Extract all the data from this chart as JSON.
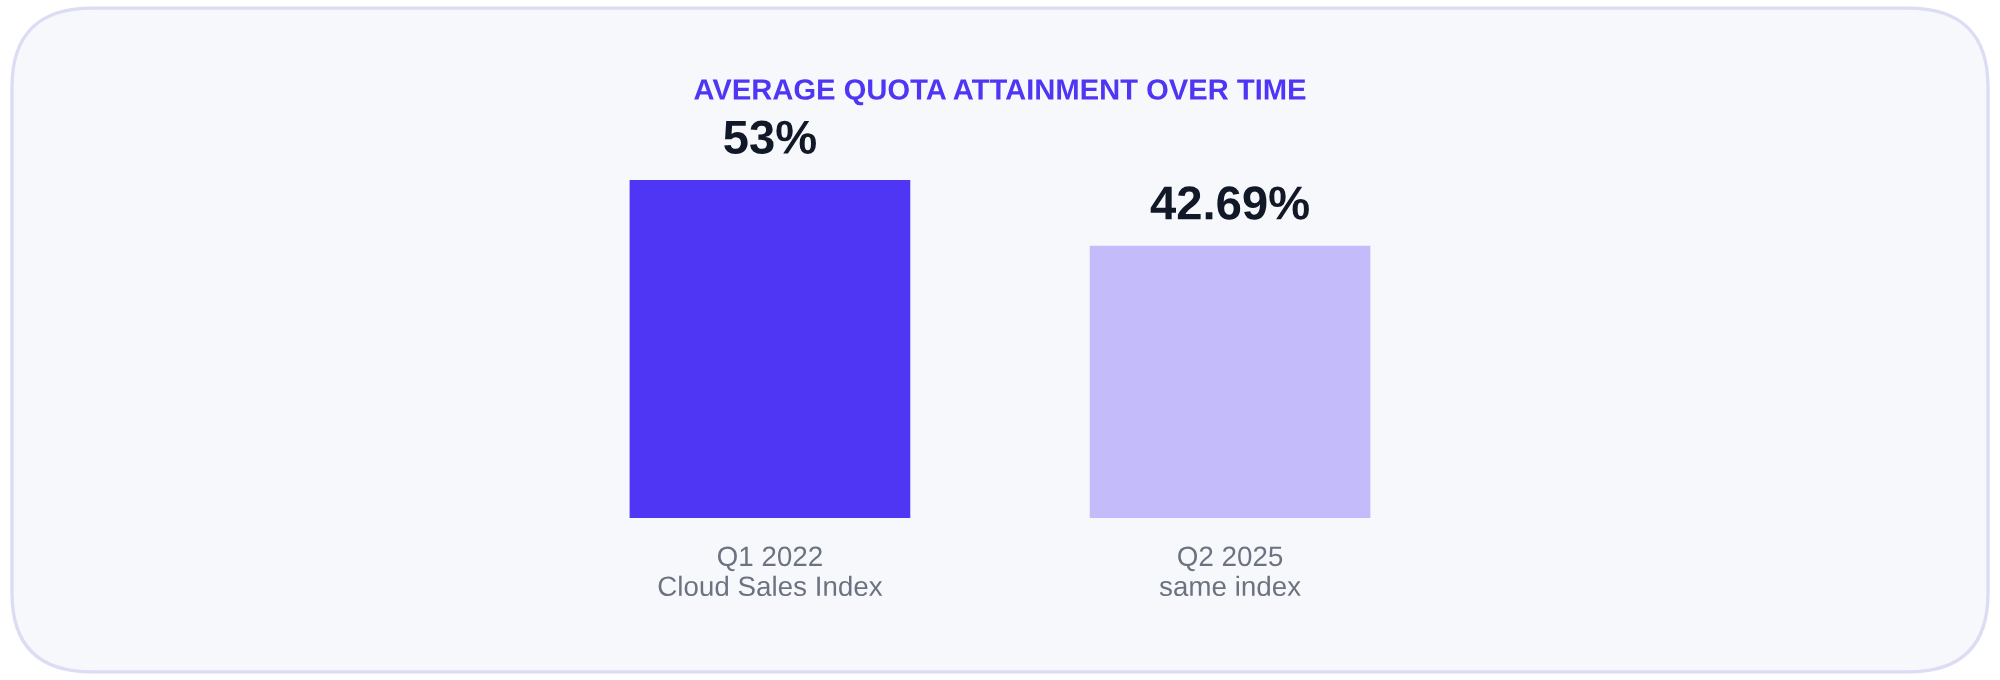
{
  "chart_data": {
    "type": "bar",
    "title": "AVERAGE QUOTA ATTAINMENT OVER TIME",
    "categories": [
      "Q1 2022\nCloud Sales Index",
      "Q2 2025\nsame index"
    ],
    "values": [
      53,
      42.69
    ],
    "colors": [
      "#4f36f5",
      "#c4bbfb"
    ],
    "value_labels": [
      "53%",
      "42.69%"
    ]
  }
}
